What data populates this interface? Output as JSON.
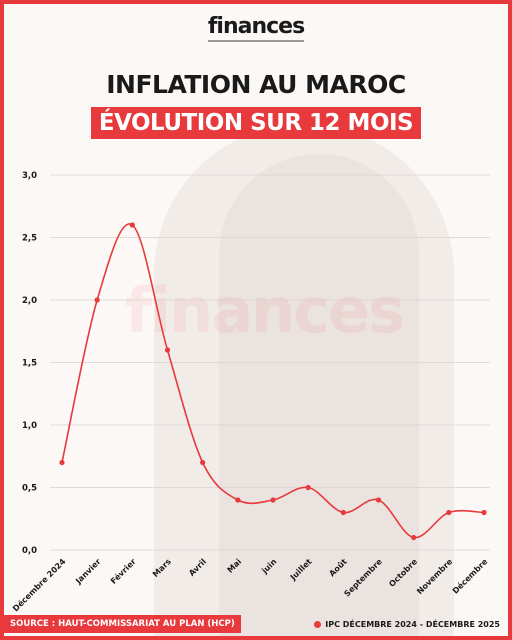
{
  "header": {
    "logo_text": "finances",
    "title_line1": "INFLATION AU MAROC",
    "title_line2": "ÉVOLUTION SUR 12 MOIS"
  },
  "footer": {
    "source": "SOURCE : HAUT-COMMISSARIAT AU PLAN (HCP)"
  },
  "colors": {
    "accent": "#e8393d",
    "text": "#1a1a1a",
    "grid": "#d9d2cf"
  },
  "chart_data": {
    "type": "line",
    "categories": [
      "Décembre 2024",
      "Janvier",
      "Février",
      "Mars",
      "Avril",
      "Mai",
      "juin",
      "Juillet",
      "Août",
      "Septembre",
      "Octobre",
      "Novembre",
      "Décembre"
    ],
    "series": [
      {
        "name": "IPC DÉCEMBRE 2024 - DÉCEMBRE 2025",
        "values": [
          0.7,
          2.0,
          2.6,
          1.6,
          0.7,
          0.4,
          0.4,
          0.5,
          0.3,
          0.4,
          0.1,
          0.3,
          0.3
        ]
      }
    ],
    "yticks": [
      "0,0",
      "0,5",
      "1,0",
      "1,5",
      "2,0",
      "2,5",
      "3,0"
    ],
    "ylim": [
      0,
      3
    ],
    "grid": true,
    "legend_position": "bottom-right"
  }
}
